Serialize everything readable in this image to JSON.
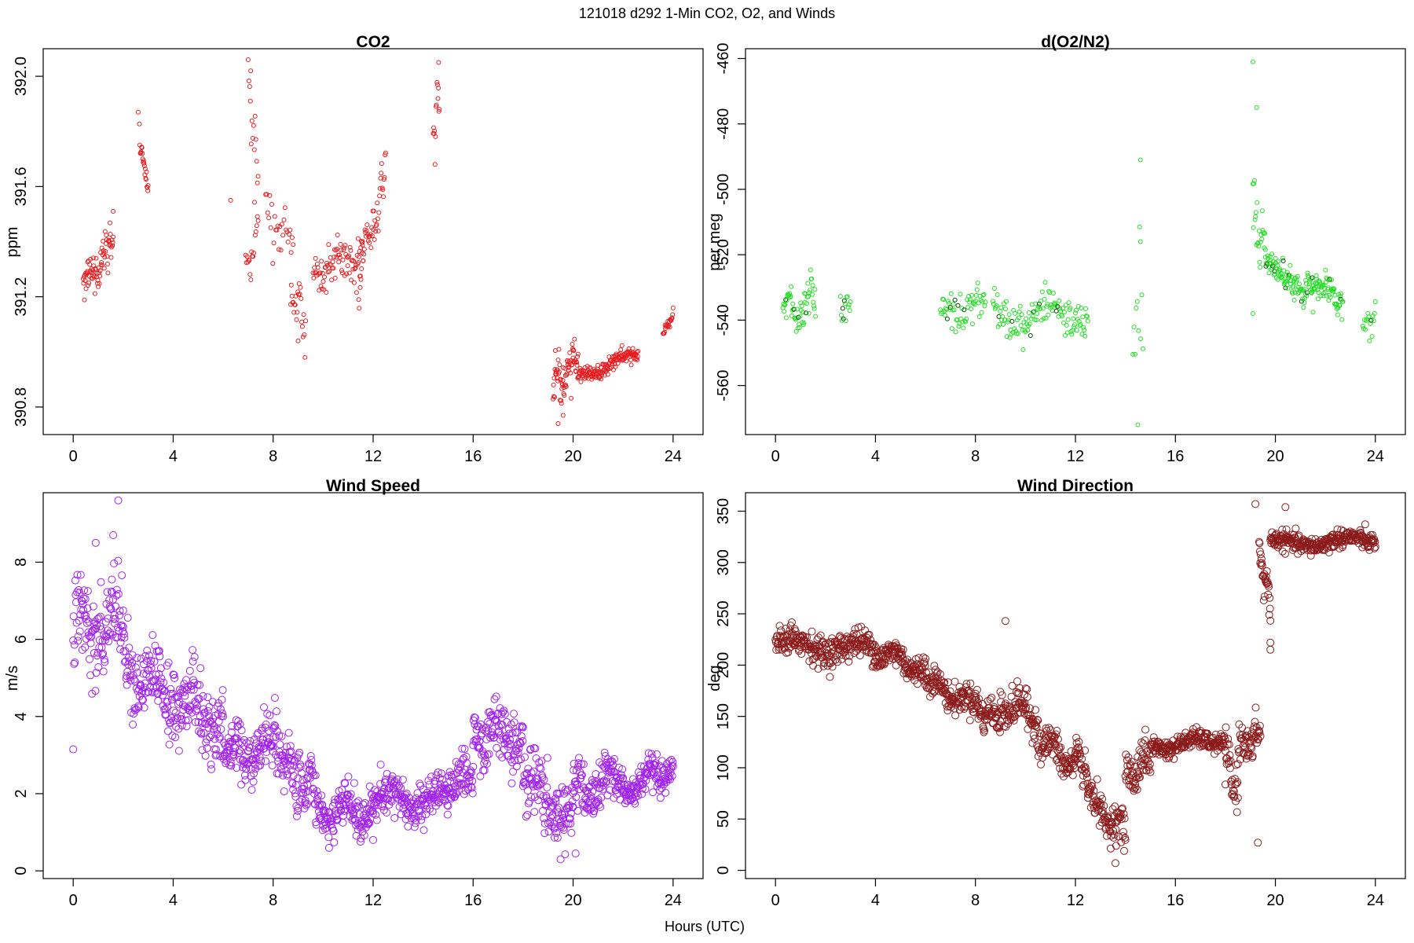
{
  "figure": {
    "suptitle": "121018   d292   1-Min CO2, O2, and Winds",
    "xlabel": "Hours (UTC)"
  },
  "chart_data": [
    {
      "type": "scatter",
      "title": "CO2",
      "ylabel": "ppm",
      "xlabel": "",
      "xlim": [
        -1.2,
        25.2
      ],
      "ylim": [
        390.7,
        392.1
      ],
      "xticks": [
        0,
        4,
        8,
        12,
        16,
        20,
        24
      ],
      "yticks": [
        390.8,
        391.2,
        391.6,
        392.0
      ],
      "ytick_labels": [
        "390.8",
        "391.2",
        "391.6",
        "392.0"
      ],
      "grid": false,
      "marker_color": "#e8191c",
      "segments": [
        {
          "x0": 0.4,
          "x1": 1.6,
          "y0": 391.25,
          "y1": 391.38,
          "n": 75,
          "jitter": 0.07
        },
        {
          "x0": 2.65,
          "x1": 3.0,
          "y0": 391.78,
          "y1": 391.58,
          "n": 22,
          "jitter": 0.03
        },
        {
          "x0": 6.9,
          "x1": 7.4,
          "y0": 391.3,
          "y1": 391.45,
          "n": 18,
          "jitter": 0.08
        },
        {
          "x0": 7.0,
          "x1": 7.4,
          "y0": 391.95,
          "y1": 391.65,
          "n": 14,
          "jitter": 0.1
        },
        {
          "x0": 7.7,
          "x1": 8.8,
          "y0": 391.52,
          "y1": 391.4,
          "n": 28,
          "jitter": 0.08
        },
        {
          "x0": 8.7,
          "x1": 9.3,
          "y0": 391.22,
          "y1": 391.12,
          "n": 24,
          "jitter": 0.07
        },
        {
          "x0": 9.6,
          "x1": 11.6,
          "y0": 391.3,
          "y1": 391.36,
          "n": 85,
          "jitter": 0.07
        },
        {
          "x0": 11.4,
          "x1": 12.5,
          "y0": 391.28,
          "y1": 391.62,
          "n": 50,
          "jitter": 0.1
        },
        {
          "x0": 14.4,
          "x1": 14.65,
          "y0": 391.78,
          "y1": 391.95,
          "n": 14,
          "jitter": 0.09
        },
        {
          "x0": 19.2,
          "x1": 20.2,
          "y0": 390.86,
          "y1": 390.97,
          "n": 70,
          "jitter": 0.08
        },
        {
          "x0": 20.2,
          "x1": 22.6,
          "y0": 390.9,
          "y1": 391.0,
          "n": 150,
          "jitter": 0.025
        },
        {
          "x0": 23.6,
          "x1": 24.0,
          "y0": 391.07,
          "y1": 391.13,
          "n": 22,
          "jitter": 0.015
        }
      ],
      "points": [
        {
          "x": 7.1,
          "y": 392.02
        },
        {
          "x": 14.62,
          "y": 392.05
        },
        {
          "x": 2.6,
          "y": 391.87
        },
        {
          "x": 6.3,
          "y": 391.55
        },
        {
          "x": 9.0,
          "y": 391.04
        },
        {
          "x": 19.4,
          "y": 390.74
        },
        {
          "x": 19.6,
          "y": 390.77
        },
        {
          "x": 1.6,
          "y": 391.51
        }
      ]
    },
    {
      "type": "scatter",
      "title": "d(O2/N2)",
      "ylabel": "per meg",
      "xlabel": "",
      "xlim": [
        -1.2,
        25.2
      ],
      "ylim": [
        -575,
        -457
      ],
      "xticks": [
        0,
        4,
        8,
        12,
        16,
        20,
        24
      ],
      "yticks": [
        -460,
        -480,
        -500,
        -520,
        -540,
        -560
      ],
      "ytick_labels": [
        "-460",
        "-480",
        "-500",
        "-520",
        "-540",
        "-560"
      ],
      "grid": false,
      "marker_color": "#22dd22",
      "dark_marker_color": "#004400",
      "segments": [
        {
          "x0": 0.3,
          "x1": 1.6,
          "y0": -538,
          "y1": -534,
          "n": 60,
          "jitter": 6
        },
        {
          "x0": 2.6,
          "x1": 3.0,
          "y0": -537,
          "y1": -534,
          "n": 14,
          "jitter": 5
        },
        {
          "x0": 6.6,
          "x1": 8.4,
          "y0": -538,
          "y1": -535,
          "n": 60,
          "jitter": 5
        },
        {
          "x0": 8.7,
          "x1": 12.5,
          "y0": -538,
          "y1": -538,
          "n": 130,
          "jitter": 6
        },
        {
          "x0": 14.3,
          "x1": 14.7,
          "y0": -546,
          "y1": -530,
          "n": 10,
          "jitter": 14
        },
        {
          "x0": 19.1,
          "x1": 19.6,
          "y0": -508,
          "y1": -520,
          "n": 25,
          "jitter": 9
        },
        {
          "x0": 19.6,
          "x1": 22.7,
          "y0": -524,
          "y1": -534,
          "n": 170,
          "jitter": 4
        },
        {
          "x0": 23.5,
          "x1": 24.0,
          "y0": -539,
          "y1": -541,
          "n": 16,
          "jitter": 4
        }
      ],
      "points": [
        {
          "x": 19.1,
          "y": -461
        },
        {
          "x": 19.25,
          "y": -475
        },
        {
          "x": 14.6,
          "y": -491
        },
        {
          "x": 14.5,
          "y": -572
        },
        {
          "x": 14.6,
          "y": -516
        },
        {
          "x": 19.1,
          "y": -538
        }
      ]
    },
    {
      "type": "scatter",
      "title": "Wind Speed",
      "ylabel": "m/s",
      "xlabel": "",
      "xlim": [
        -1.2,
        25.2
      ],
      "ylim": [
        -0.2,
        9.8
      ],
      "xticks": [
        0,
        4,
        8,
        12,
        16,
        20,
        24
      ],
      "yticks": [
        0,
        2,
        4,
        6,
        8
      ],
      "ytick_labels": [
        "0",
        "2",
        "4",
        "6",
        "8"
      ],
      "grid": false,
      "marker_color": "#a020f0",
      "segments": [
        {
          "x0": 0.0,
          "x1": 2.0,
          "y0": 6.2,
          "y1": 6.3,
          "n": 120,
          "jitter": 1.0
        },
        {
          "x0": 2.0,
          "x1": 4.0,
          "y0": 5.5,
          "y1": 4.6,
          "n": 120,
          "jitter": 0.9
        },
        {
          "x0": 4.0,
          "x1": 6.0,
          "y0": 4.6,
          "y1": 3.6,
          "n": 120,
          "jitter": 0.9
        },
        {
          "x0": 6.0,
          "x1": 8.0,
          "y0": 3.0,
          "y1": 3.1,
          "n": 120,
          "jitter": 0.6
        },
        {
          "x0": 8.0,
          "x1": 9.0,
          "y0": 3.5,
          "y1": 2.2,
          "n": 60,
          "jitter": 0.7
        },
        {
          "x0": 9.0,
          "x1": 10.0,
          "y0": 2.5,
          "y1": 1.6,
          "n": 60,
          "jitter": 0.6
        },
        {
          "x0": 10.0,
          "x1": 12.0,
          "y0": 1.5,
          "y1": 1.5,
          "n": 120,
          "jitter": 0.5
        },
        {
          "x0": 12.0,
          "x1": 15.0,
          "y0": 1.9,
          "y1": 1.8,
          "n": 180,
          "jitter": 0.5
        },
        {
          "x0": 15.0,
          "x1": 16.0,
          "y0": 2.3,
          "y1": 2.6,
          "n": 60,
          "jitter": 0.5
        },
        {
          "x0": 16.0,
          "x1": 18.0,
          "y0": 3.6,
          "y1": 3.5,
          "n": 120,
          "jitter": 0.6
        },
        {
          "x0": 18.0,
          "x1": 20.0,
          "y0": 2.4,
          "y1": 1.2,
          "n": 120,
          "jitter": 0.7
        },
        {
          "x0": 20.0,
          "x1": 22.0,
          "y0": 2.0,
          "y1": 2.4,
          "n": 120,
          "jitter": 0.6
        },
        {
          "x0": 22.0,
          "x1": 24.0,
          "y0": 2.1,
          "y1": 2.6,
          "n": 120,
          "jitter": 0.4
        }
      ],
      "points": [
        {
          "x": 0.0,
          "y": 3.15
        },
        {
          "x": 1.8,
          "y": 9.6
        },
        {
          "x": 0.9,
          "y": 8.5
        },
        {
          "x": 1.6,
          "y": 8.7
        },
        {
          "x": 19.5,
          "y": 0.3
        },
        {
          "x": 20.1,
          "y": 0.45
        },
        {
          "x": 12.0,
          "y": 0.8
        }
      ]
    },
    {
      "type": "scatter",
      "title": "Wind Direction",
      "ylabel": "deg",
      "xlabel": "",
      "xlim": [
        -1.2,
        25.2
      ],
      "ylim": [
        -8,
        368
      ],
      "xticks": [
        0,
        4,
        8,
        12,
        16,
        20,
        24
      ],
      "yticks": [
        0,
        50,
        100,
        150,
        200,
        250,
        300,
        350
      ],
      "ytick_labels": [
        "0",
        "50",
        "100",
        "150",
        "200",
        "250",
        "300",
        "350"
      ],
      "grid": false,
      "marker_color": "#8b1a1a",
      "segments": [
        {
          "x0": 0.0,
          "x1": 4.0,
          "y0": 222,
          "y1": 215,
          "n": 240,
          "jitter": 13
        },
        {
          "x0": 4.0,
          "x1": 6.0,
          "y0": 215,
          "y1": 195,
          "n": 120,
          "jitter": 13
        },
        {
          "x0": 6.0,
          "x1": 8.0,
          "y0": 185,
          "y1": 160,
          "n": 120,
          "jitter": 12
        },
        {
          "x0": 8.0,
          "x1": 9.0,
          "y0": 160,
          "y1": 145,
          "n": 60,
          "jitter": 14
        },
        {
          "x0": 9.0,
          "x1": 10.5,
          "y0": 165,
          "y1": 150,
          "n": 90,
          "jitter": 16
        },
        {
          "x0": 10.5,
          "x1": 12.0,
          "y0": 130,
          "y1": 100,
          "n": 90,
          "jitter": 15
        },
        {
          "x0": 12.0,
          "x1": 12.5,
          "y0": 120,
          "y1": 90,
          "n": 30,
          "jitter": 15
        },
        {
          "x0": 12.5,
          "x1": 14.0,
          "y0": 70,
          "y1": 35,
          "n": 90,
          "jitter": 15
        },
        {
          "x0": 14.0,
          "x1": 15.0,
          "y0": 90,
          "y1": 110,
          "n": 60,
          "jitter": 18
        },
        {
          "x0": 15.0,
          "x1": 18.0,
          "y0": 120,
          "y1": 128,
          "n": 180,
          "jitter": 8
        },
        {
          "x0": 18.0,
          "x1": 18.5,
          "y0": 110,
          "y1": 70,
          "n": 30,
          "jitter": 18
        },
        {
          "x0": 18.5,
          "x1": 19.4,
          "y0": 120,
          "y1": 130,
          "n": 54,
          "jitter": 16
        },
        {
          "x0": 19.35,
          "x1": 19.8,
          "y0": 305,
          "y1": 260,
          "n": 30,
          "jitter": 18
        },
        {
          "x0": 19.8,
          "x1": 24.0,
          "y0": 318,
          "y1": 322,
          "n": 250,
          "jitter": 8
        }
      ],
      "points": [
        {
          "x": 19.3,
          "y": 27
        },
        {
          "x": 19.2,
          "y": 357
        },
        {
          "x": 9.2,
          "y": 243
        },
        {
          "x": 19.8,
          "y": 215
        },
        {
          "x": 13.6,
          "y": 7
        },
        {
          "x": 19.8,
          "y": 222
        },
        {
          "x": 20.4,
          "y": 354
        }
      ]
    }
  ]
}
